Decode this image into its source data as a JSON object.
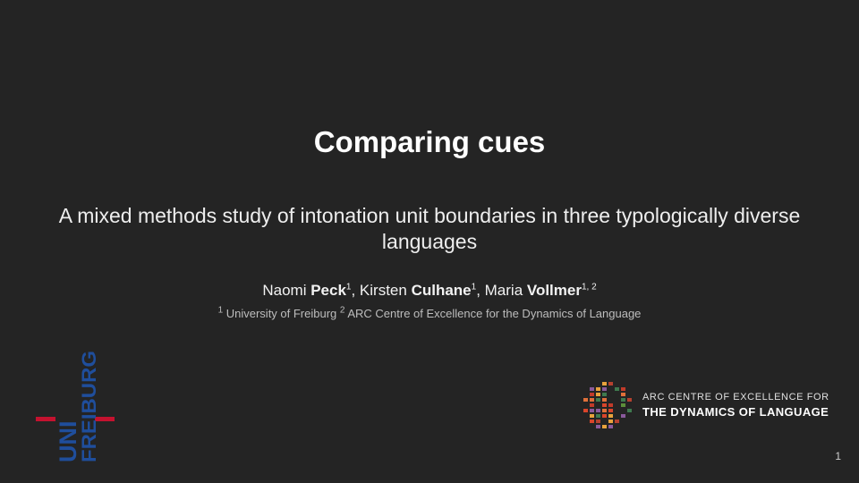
{
  "slide": {
    "title": "Comparing cues",
    "subtitle": "A mixed methods study of intonation unit boundaries in three typologically diverse languages",
    "authors": [
      {
        "first": "Naomi ",
        "last": "Peck",
        "sup": "1",
        "sep": ", "
      },
      {
        "first": "Kirsten ",
        "last": "Culhane",
        "sup": "1",
        "sep": ", "
      },
      {
        "first": "Maria ",
        "last": "Vollmer",
        "sup": "1, 2",
        "sep": ""
      }
    ],
    "affiliations": [
      {
        "sup": "1",
        "name": " University of Freiburg "
      },
      {
        "sup": "2",
        "name": " ARC Centre of Excellence for the Dynamics of Language"
      }
    ],
    "page_number": "1"
  },
  "logos": {
    "uni_freiburg": {
      "line1": "UNI",
      "line2": "FREIBURG",
      "blue": "#1f4e9c",
      "red": "#c4122f"
    },
    "arc": {
      "line1": "ARC CENTRE OF EXCELLENCE FOR",
      "line2": "THE DYNAMICS OF LANGUAGE"
    }
  },
  "colors": {
    "background": "#242424",
    "text": "#ffffff",
    "muted": "#bdbdbd"
  }
}
